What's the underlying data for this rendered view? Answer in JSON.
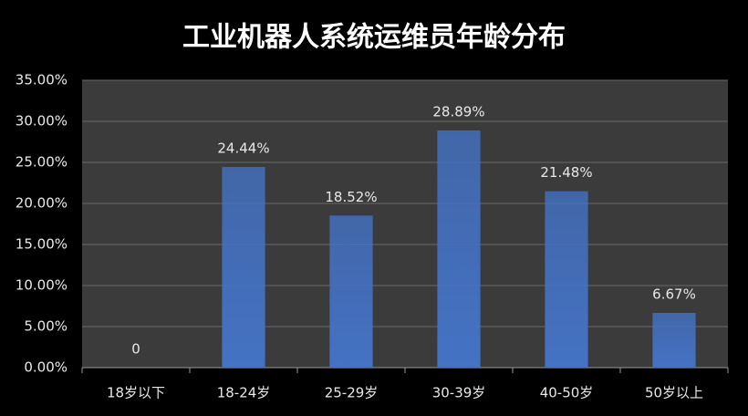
{
  "chart_data": {
    "type": "bar",
    "title": "工业机器人系统运维员年龄分布",
    "categories": [
      "18岁以下",
      "18-24岁",
      "25-29岁",
      "30-39岁",
      "40-50岁",
      "50岁以上"
    ],
    "values": [
      0,
      24.44,
      18.52,
      28.89,
      21.48,
      6.67
    ],
    "value_labels": [
      "0",
      "24.44%",
      "18.52%",
      "28.89%",
      "21.48%",
      "6.67%"
    ],
    "color": "#4472c4",
    "ylim": [
      0,
      35
    ],
    "yticks": [
      {
        "value": 0,
        "label": "0.00%"
      },
      {
        "value": 5,
        "label": "5.00%"
      },
      {
        "value": 10,
        "label": "10.00%"
      },
      {
        "value": 15,
        "label": "15.00%"
      },
      {
        "value": 20,
        "label": "20.00%"
      },
      {
        "value": 25,
        "label": "25.00%"
      },
      {
        "value": 30,
        "label": "30.00%"
      },
      {
        "value": 35,
        "label": "35.00%"
      }
    ],
    "grid": true
  }
}
